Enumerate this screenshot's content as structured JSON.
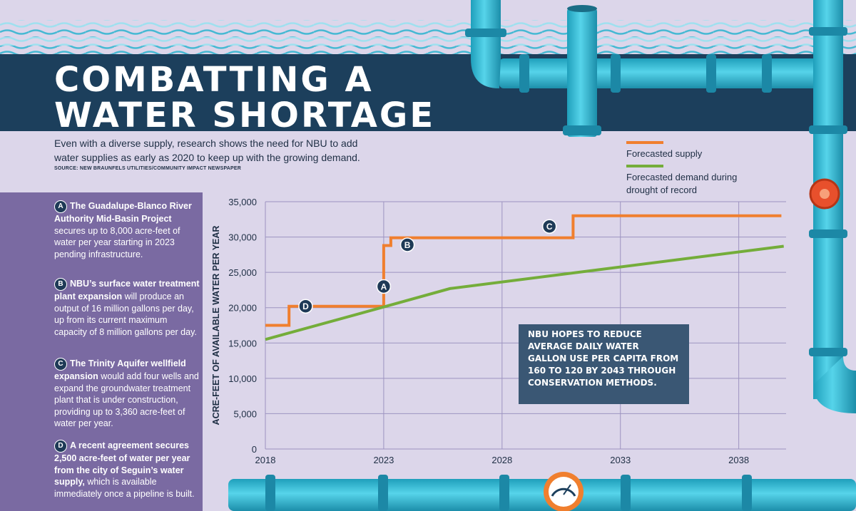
{
  "header": {
    "title_line1": "COMBATTING A",
    "title_line2": "WATER SHORTAGE",
    "intro": "Even with a diverse supply, research shows the need for NBU to add water supplies as early as 2020 to keep up with the growing demand.",
    "source": "SOURCE: NEW BRAUNFELS UTILITIES/COMMUNITY IMPACT NEWSPAPER"
  },
  "legend": {
    "supply": "Forecasted supply",
    "demand": "Forecasted demand during drought of record"
  },
  "colors": {
    "supply": "#f07f2e",
    "demand": "#74ad3a",
    "header_band": "#1c3f5c",
    "sidebar": "#7a6aa2",
    "pipe": "#33bdd6",
    "callout": "#3a5774"
  },
  "notes": [
    {
      "letter": "A",
      "bold": "The Guadalupe-Blanco River Authority Mid-Basin Project",
      "rest": " secures up to 8,000 acre-feet of water per year starting in 2023 pending infrastructure."
    },
    {
      "letter": "B",
      "bold": "NBU’s surface water treatment plant expansion",
      "rest": " will produce an output of 16 million gallons per day, up from its current maximum capacity of 8 million gallons per day."
    },
    {
      "letter": "C",
      "bold": "The Trinity Aquifer wellfield expansion",
      "rest": " would add four wells and expand the groundwater treatment plant that is under construction, providing up to 3,360 acre-feet of water per year."
    },
    {
      "letter": "D",
      "bold": "A recent agreement secures 2,500 acre-feet of water per year from the city of Seguin’s water supply,",
      "rest": " which is available immediately once a pipeline is built."
    }
  ],
  "callout": "NBU hopes to reduce average daily water gallon use per capita from 160 to 120 by 2043 through conservation methods.",
  "chart_data": {
    "type": "line",
    "ylabel": "ACRE-FEET OF AVAILABLE WATER PER YEAR",
    "xlabel": "",
    "xlim": [
      2018,
      2040
    ],
    "ylim": [
      0,
      35000
    ],
    "x_ticks": [
      2018,
      2023,
      2028,
      2033,
      2038
    ],
    "x_tick_labels": [
      "2018",
      "2023",
      "2028",
      "2033",
      "2038"
    ],
    "y_ticks": [
      0,
      5000,
      10000,
      15000,
      20000,
      25000,
      30000,
      35000
    ],
    "y_tick_labels": [
      "0",
      "5,000",
      "10,000",
      "15,000",
      "20,000",
      "25,000",
      "30,000",
      "35,000"
    ],
    "grid": true,
    "series": [
      {
        "name": "Forecasted supply",
        "color": "#f07f2e",
        "x": [
          2018,
          2019,
          2019,
          2023,
          2023,
          2023.3,
          2023.3,
          2031,
          2031,
          2039.8
        ],
        "y": [
          17500,
          17500,
          20200,
          20200,
          28800,
          28800,
          29900,
          29900,
          33000,
          33000
        ]
      },
      {
        "name": "Forecasted demand during drought of record",
        "color": "#74ad3a",
        "x": [
          2018,
          2023,
          2025.8,
          2039.9
        ],
        "y": [
          15500,
          20100,
          22700,
          28700
        ]
      }
    ],
    "annotations": [
      {
        "label": "A",
        "x": 2023,
        "y": 23000
      },
      {
        "label": "B",
        "x": 2024,
        "y": 28900
      },
      {
        "label": "C",
        "x": 2030,
        "y": 31500
      },
      {
        "label": "D",
        "x": 2019.7,
        "y": 20200
      }
    ]
  }
}
